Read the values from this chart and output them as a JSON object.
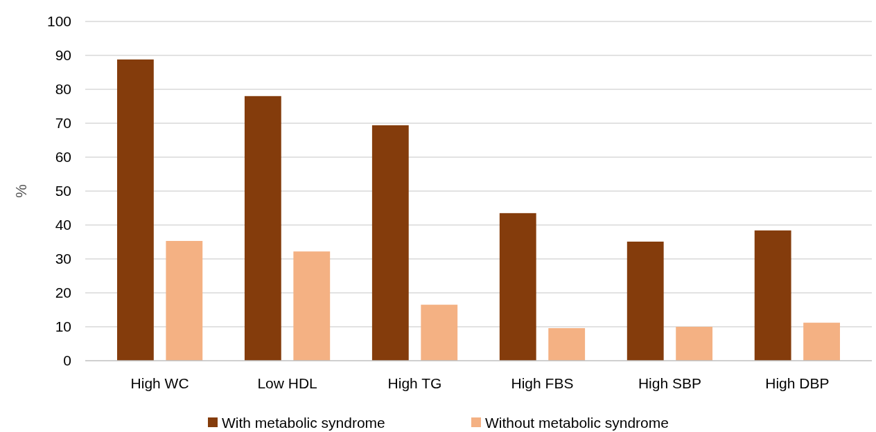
{
  "chart_data": {
    "type": "bar",
    "ylabel": "%",
    "categories": [
      "High WC",
      "Low HDL",
      "High TG",
      "High FBS",
      "High SBP",
      "High DBP"
    ],
    "series": [
      {
        "name": "With metabolic syndrome",
        "color": "#843c0c",
        "values": [
          88.8,
          78.0,
          69.4,
          43.5,
          35.1,
          38.4
        ]
      },
      {
        "name": "Without metabolic syndrome",
        "color": "#f4b183",
        "values": [
          35.3,
          32.2,
          16.5,
          9.6,
          10.0,
          11.2
        ]
      }
    ],
    "ylim": [
      0,
      100
    ],
    "yticks": [
      0,
      10,
      20,
      30,
      40,
      50,
      60,
      70,
      80,
      90,
      100
    ],
    "grid": "y",
    "legend": "bottom"
  }
}
